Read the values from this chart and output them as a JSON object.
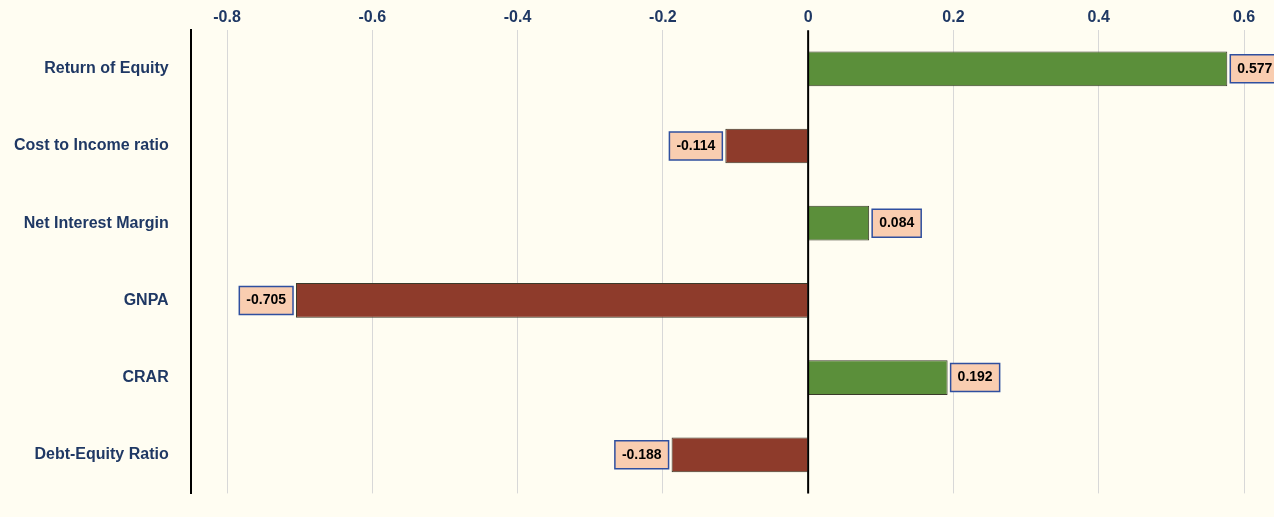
{
  "chart_data": {
    "type": "bar",
    "orientation": "horizontal",
    "categories": [
      "Return of Equity",
      "Cost to Income ratio",
      "Net Interest Margin",
      "GNPA",
      "CRAR",
      "Debt-Equity Ratio"
    ],
    "values": [
      0.577,
      -0.114,
      0.084,
      -0.705,
      0.192,
      -0.188
    ],
    "colors": [
      "#5b8f3a",
      "#8e3b2b",
      "#5b8f3a",
      "#8e3b2b",
      "#5b8f3a",
      "#8e3b2b"
    ],
    "xlim": [
      -0.85,
      0.6
    ],
    "xticks": [
      -0.8,
      -0.6,
      -0.4,
      -0.2,
      0,
      0.2,
      0.4,
      0.6
    ],
    "grid": "x",
    "legend": false,
    "data_labels": true
  }
}
